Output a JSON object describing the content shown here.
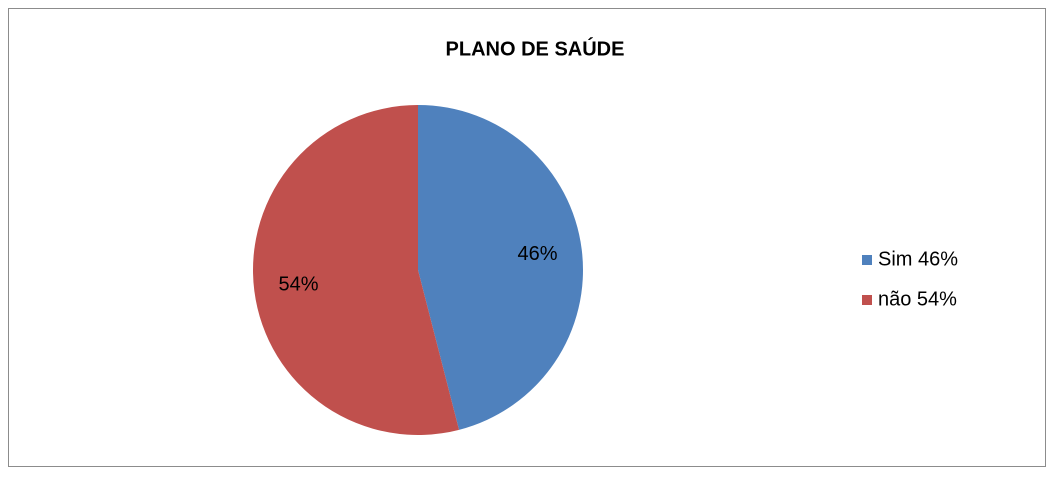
{
  "chart_data": {
    "type": "pie",
    "title": "PLANO DE SAÚDE",
    "categories": [
      "Sim 46%",
      "não 54%"
    ],
    "values": [
      46,
      54
    ],
    "value_labels": [
      "46%",
      "54%"
    ],
    "colors": [
      "#4f81bd",
      "#c0504d"
    ],
    "legend": "right"
  }
}
